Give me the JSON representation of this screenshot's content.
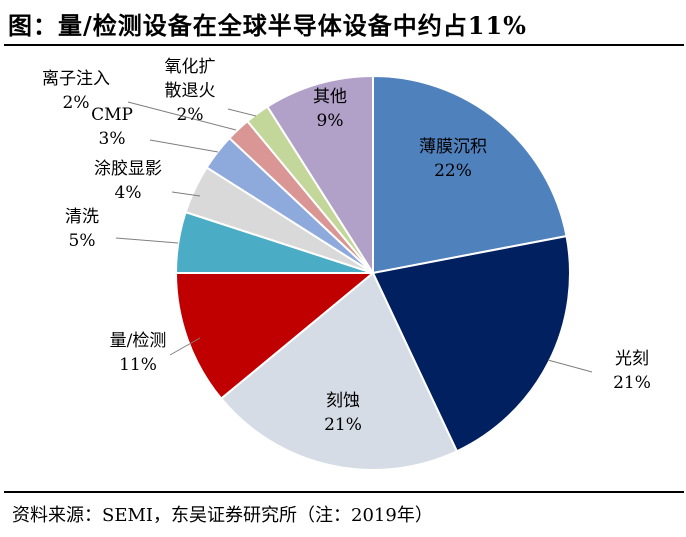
{
  "title": "图：量/检测设备在全球半导体设备中约占11%",
  "source": "资料来源：SEMI，东吴证券研究所（注：2019年）",
  "colors": {
    "thin_film": "#4F81BD",
    "lithography": "#002060",
    "etch": "#D6DCE5",
    "metrology": "#C00000",
    "cleaning": "#4BACC6",
    "coating": "#D9D9D9",
    "cmp": "#8EA9DB",
    "ion_implant": "#DA9694",
    "oxidation": "#C4D79B",
    "other": "#B1A0C7"
  },
  "chart_data": {
    "type": "pie",
    "start_angle_deg": 0,
    "direction": "clockwise",
    "slices": [
      {
        "key": "thin_film",
        "name": "薄膜沉积",
        "value": 22,
        "label": "22%"
      },
      {
        "key": "lithography",
        "name": "光刻",
        "value": 21,
        "label": "21%"
      },
      {
        "key": "etch",
        "name": "刻蚀",
        "value": 21,
        "label": "21%"
      },
      {
        "key": "metrology",
        "name": "量/检测",
        "value": 11,
        "label": "11%"
      },
      {
        "key": "cleaning",
        "name": "清洗",
        "value": 5,
        "label": "5%"
      },
      {
        "key": "coating",
        "name": "涂胶显影",
        "value": 4,
        "label": "4%"
      },
      {
        "key": "cmp",
        "name": "CMP",
        "value": 3,
        "label": "3%"
      },
      {
        "key": "ion_implant",
        "name": "离子注入",
        "value": 2,
        "label": "2%"
      },
      {
        "key": "oxidation",
        "name": "氧化扩散退火",
        "name_lines": [
          "氧化扩",
          "散退火"
        ],
        "value": 2,
        "label": "2%"
      },
      {
        "key": "other",
        "name": "其他",
        "value": 9,
        "label": "9%"
      }
    ]
  }
}
